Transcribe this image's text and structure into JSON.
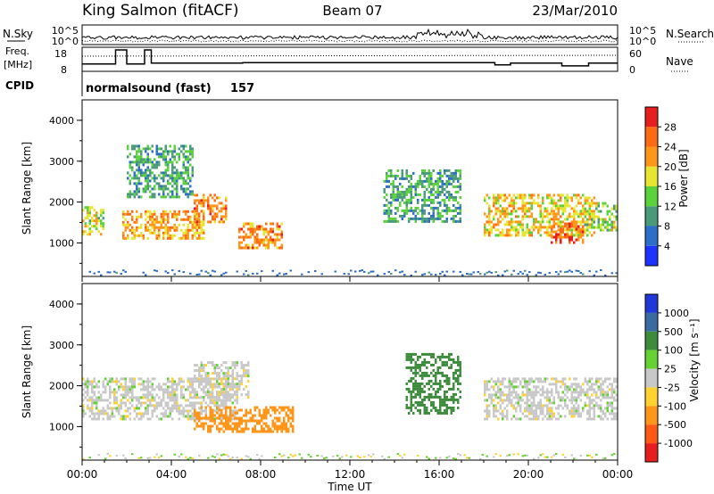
{
  "header": {
    "station": "King Salmon (fitACF)",
    "beam": "Beam 07",
    "date": "23/Mar/2010"
  },
  "noise_panel": {
    "left_label": "N.Sky",
    "right_label": "N.Search",
    "left_top": "10^5",
    "left_bottom": "10^0",
    "right_top": "10^5",
    "right_bottom": "10^0"
  },
  "freq_panel": {
    "left_label_1": "Freq.",
    "left_label_2": "[MHz]",
    "right_label": "Nave",
    "left_ticks": [
      "18",
      "8"
    ],
    "right_ticks": [
      "60",
      "0"
    ]
  },
  "cpid": {
    "label": "CPID",
    "program": "normalsound (fast)",
    "id": "157"
  },
  "x_axis": {
    "title": "Time UT",
    "ticks": [
      "00:00",
      "04:00",
      "08:00",
      "12:00",
      "16:00",
      "20:00",
      "00:00"
    ]
  },
  "range_axis": {
    "title": "Slant Range [km]",
    "ticks": [
      "1000",
      "2000",
      "3000",
      "4000"
    ]
  },
  "power_scale": {
    "title": "Power [dB]",
    "labels": [
      "4",
      "8",
      "12",
      "16",
      "20",
      "24",
      "28"
    ],
    "colors": [
      "#1e32ff",
      "#2d6ec8",
      "#4a9a7a",
      "#5ad23c",
      "#e6e632",
      "#ff9619",
      "#ff6a14",
      "#e61e1e"
    ]
  },
  "velocity_scale": {
    "title": "Velocity [m s⁻¹]",
    "labels": [
      "1000",
      "500",
      "100",
      "25",
      "-25",
      "-100",
      "-500",
      "-1000"
    ],
    "colors": [
      "#2038d8",
      "#3a6aa0",
      "#3c8c3c",
      "#64d232",
      "#c8c8c8",
      "#ffd232",
      "#ff9619",
      "#ff5a14",
      "#e61e1e"
    ]
  },
  "chart_data": {
    "type": "heatmap",
    "x_range_hours": [
      0,
      24
    ],
    "y_range_km": [
      180,
      4500
    ],
    "power_db_range": [
      0,
      30
    ],
    "velocity_range_ms": [
      -1000,
      1000
    ],
    "power_echo_regions": [
      {
        "t0": 0.0,
        "t1": 1.0,
        "r0": 1200,
        "r1": 1900,
        "power_db": 16
      },
      {
        "t0": 1.8,
        "t1": 5.5,
        "r0": 1100,
        "r1": 1800,
        "power_db": 20
      },
      {
        "t0": 5.0,
        "t1": 6.5,
        "r0": 1500,
        "r1": 2200,
        "power_db": 22
      },
      {
        "t0": 7.0,
        "t1": 9.0,
        "r0": 900,
        "r1": 1500,
        "power_db": 22
      },
      {
        "t0": 2.0,
        "t1": 5.0,
        "r0": 2100,
        "r1": 3400,
        "power_db": 10
      },
      {
        "t0": 13.5,
        "t1": 17.0,
        "r0": 1500,
        "r1": 2800,
        "power_db": 10
      },
      {
        "t0": 18.0,
        "t1": 23.0,
        "r0": 1200,
        "r1": 2200,
        "power_db": 18
      },
      {
        "t0": 21.0,
        "t1": 22.5,
        "r0": 1000,
        "r1": 1500,
        "power_db": 24
      },
      {
        "t0": 22.5,
        "t1": 24.0,
        "r0": 1300,
        "r1": 2000,
        "power_db": 14
      }
    ],
    "velocity_echo_regions": [
      {
        "t0": 0.0,
        "t1": 7.0,
        "r0": 1200,
        "r1": 2200,
        "velocity_ms": 0
      },
      {
        "t0": 5.0,
        "t1": 7.5,
        "r0": 1700,
        "r1": 2600,
        "velocity_ms": 0
      },
      {
        "t0": 5.0,
        "t1": 9.5,
        "r0": 900,
        "r1": 1500,
        "velocity_ms": -300
      },
      {
        "t0": 14.5,
        "t1": 17.0,
        "r0": 1300,
        "r1": 2800,
        "velocity_ms": 150
      },
      {
        "t0": 18.0,
        "t1": 24.0,
        "r0": 1200,
        "r1": 2200,
        "velocity_ms": 0
      }
    ]
  }
}
